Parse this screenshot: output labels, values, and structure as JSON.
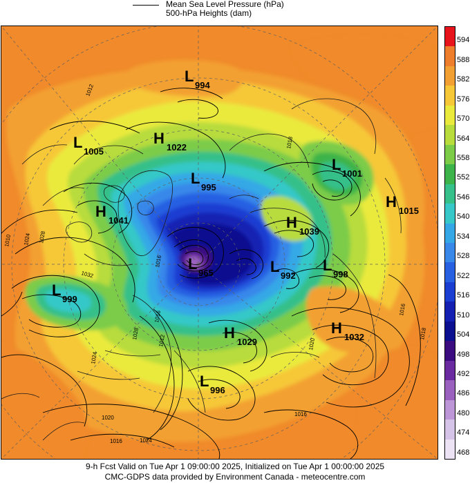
{
  "header": {
    "legend_line1": "Mean Sea Level Pressure (hPa)",
    "legend_line2": "500-hPa Heights (dam)"
  },
  "footer": {
    "line1": "9-h Fcst Valid on Tue Apr  1 09:00:00 2025, Initialized on Tue Apr  1 00:00:00 2025",
    "line2": "CMC-GDPS data provided by Environment Canada - meteocentre.com"
  },
  "colorbar": {
    "levels": [
      "594",
      "588",
      "582",
      "576",
      "570",
      "564",
      "558",
      "552",
      "546",
      "540",
      "534",
      "528",
      "522",
      "516",
      "510",
      "504",
      "498",
      "492",
      "486",
      "480",
      "474",
      "468"
    ],
    "colors": [
      "#e8141c",
      "#ef7e2c",
      "#f3a032",
      "#f6c837",
      "#eaea3c",
      "#b8dc3c",
      "#7ccc48",
      "#3cb44a",
      "#36c08a",
      "#36c8c8",
      "#34a8e6",
      "#3888ea",
      "#2860e2",
      "#1b3ed2",
      "#1420b2",
      "#0a1090",
      "#3a0c80",
      "#6a2aa0",
      "#9a62be",
      "#bc96d6",
      "#d6c4e8",
      "#ece4f4"
    ]
  },
  "pressure_systems": [
    {
      "type": "L",
      "value": "994"
    },
    {
      "type": "L",
      "value": "1005"
    },
    {
      "type": "H",
      "value": "1022"
    },
    {
      "type": "L",
      "value": "1001"
    },
    {
      "type": "L",
      "value": "995"
    },
    {
      "type": "H",
      "value": "1015"
    },
    {
      "type": "H",
      "value": "1041"
    },
    {
      "type": "H",
      "value": "1039"
    },
    {
      "type": "L",
      "value": "965"
    },
    {
      "type": "L",
      "value": "992"
    },
    {
      "type": "L",
      "value": "998"
    },
    {
      "type": "L",
      "value": "999"
    },
    {
      "type": "H",
      "value": "1029"
    },
    {
      "type": "H",
      "value": "1032"
    },
    {
      "type": "L",
      "value": "996"
    }
  ],
  "isobar_labels": [
    "1012",
    "1010",
    "1024",
    "1028",
    "1032",
    "1016",
    "1028",
    "1012",
    "1024",
    "1020",
    "1016",
    "1024",
    "1016",
    "1020",
    "1016",
    "1018",
    "1018",
    "1016"
  ]
}
